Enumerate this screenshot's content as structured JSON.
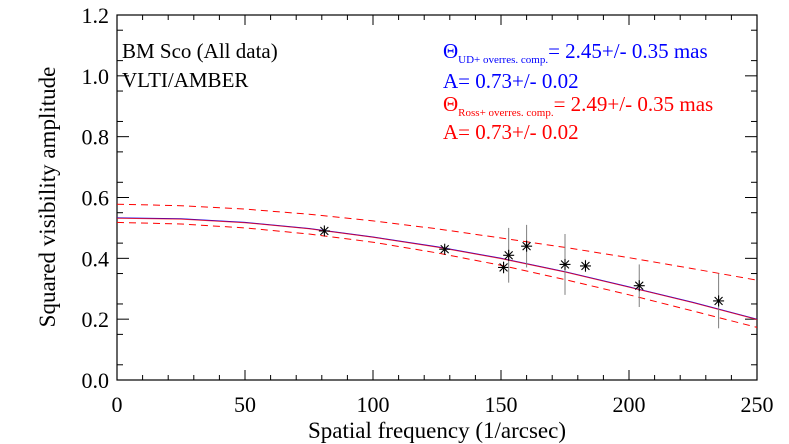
{
  "chart_data": {
    "type": "scatter",
    "xlabel": "Spatial frequency (1/arcsec)",
    "ylabel": "Squared visibility amplitude",
    "xlim": [
      0,
      250
    ],
    "ylim": [
      0,
      1.2
    ],
    "x_ticks": [
      0,
      50,
      100,
      150,
      200,
      250
    ],
    "y_ticks": [
      0.0,
      0.2,
      0.4,
      0.6,
      0.8,
      1.0,
      1.2
    ],
    "x_tick_labels": [
      "0",
      "50",
      "100",
      "150",
      "200",
      "250"
    ],
    "y_tick_labels": [
      "0.0",
      "0.2",
      "0.4",
      "0.6",
      "0.8",
      "1.0",
      "1.2"
    ],
    "grid": false,
    "points": [
      {
        "x": 81,
        "y": 0.49,
        "err": 0.01
      },
      {
        "x": 128,
        "y": 0.43,
        "err": 0.01
      },
      {
        "x": 151,
        "y": 0.37,
        "err": 0.02
      },
      {
        "x": 153,
        "y": 0.41,
        "err": 0.09
      },
      {
        "x": 160,
        "y": 0.44,
        "err": 0.07
      },
      {
        "x": 175,
        "y": 0.38,
        "err": 0.1
      },
      {
        "x": 183,
        "y": 0.375,
        "err": 0.02
      },
      {
        "x": 204,
        "y": 0.31,
        "err": 0.07
      },
      {
        "x": 235,
        "y": 0.26,
        "err": 0.09
      }
    ],
    "models": [
      {
        "style": "solid",
        "color": "#0000ff",
        "x": [
          0,
          25,
          50,
          75,
          100,
          125,
          150,
          175,
          200,
          225,
          250
        ],
        "y": [
          0.533,
          0.53,
          0.518,
          0.498,
          0.47,
          0.438,
          0.4,
          0.356,
          0.306,
          0.255,
          0.2
        ]
      },
      {
        "style": "solid",
        "color": "#ff0000",
        "x": [
          0,
          25,
          50,
          75,
          100,
          125,
          150,
          175,
          200,
          225,
          250
        ],
        "y": [
          0.532,
          0.529,
          0.517,
          0.497,
          0.469,
          0.437,
          0.399,
          0.355,
          0.305,
          0.254,
          0.199
        ]
      },
      {
        "style": "dashed",
        "color": "#ff0000",
        "x": [
          0,
          25,
          50,
          75,
          100,
          125,
          150,
          175,
          200,
          225,
          250
        ],
        "y": [
          0.578,
          0.573,
          0.562,
          0.545,
          0.523,
          0.497,
          0.467,
          0.436,
          0.402,
          0.366,
          0.328
        ]
      },
      {
        "style": "dashed",
        "color": "#ff0000",
        "x": [
          0,
          25,
          50,
          75,
          100,
          125,
          150,
          175,
          200,
          225,
          250
        ],
        "y": [
          0.518,
          0.513,
          0.5,
          0.48,
          0.453,
          0.418,
          0.377,
          0.33,
          0.28,
          0.227,
          0.173
        ]
      }
    ],
    "annotations": {
      "target": "BM Sco (All data)",
      "instrument": "VLTI/AMBER",
      "ud": {
        "symbol": "Θ",
        "subscript": "UD+ overres. comp.",
        "value": "= 2.45+/- 0.35 mas",
        "amp": "A= 0.73+/- 0.02",
        "color": "#0000ff"
      },
      "ross": {
        "symbol": "Θ",
        "subscript": "Ross+ overres. comp.",
        "value": "= 2.49+/- 0.35 mas",
        "amp": "A= 0.73+/- 0.02",
        "color": "#ff0000"
      }
    }
  }
}
